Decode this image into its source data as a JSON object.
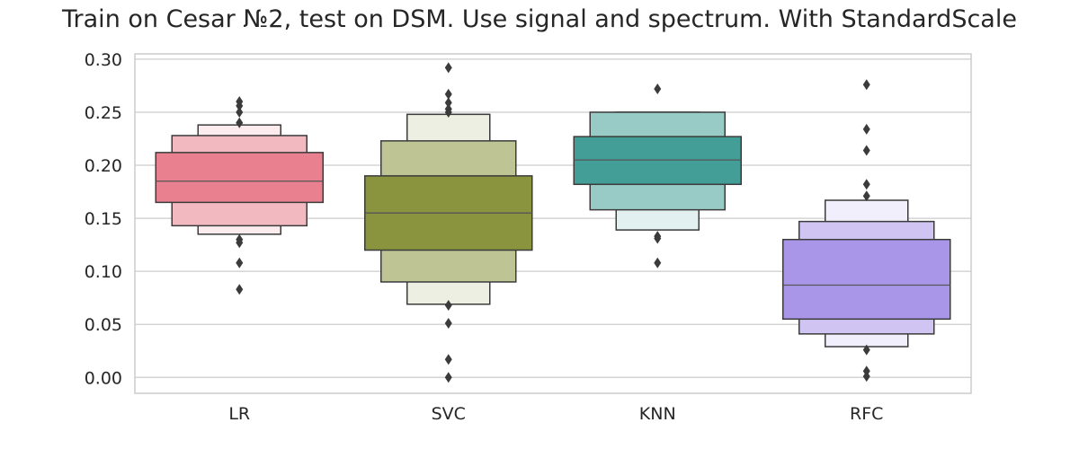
{
  "chart_data": {
    "type": "boxen",
    "title": "Train on Cesar №2, test on DSM. Use signal and spectrum. With StandardScale",
    "xlabel": "",
    "ylabel": "",
    "ylim": [
      -0.015,
      0.305
    ],
    "yticks": [
      "0.00",
      "0.05",
      "0.10",
      "0.15",
      "0.20",
      "0.25",
      "0.30"
    ],
    "grid": "horizontal",
    "categories": [
      "LR",
      "SVC",
      "KNN",
      "RFC"
    ],
    "series": [
      {
        "category": "LR",
        "median": 0.185,
        "levels": [
          [
            0.165,
            0.212
          ],
          [
            0.143,
            0.228
          ],
          [
            0.135,
            0.238
          ]
        ],
        "outliers": [
          0.26,
          0.256,
          0.25,
          0.24,
          0.13,
          0.127,
          0.108,
          0.083
        ],
        "color": "#e8808f"
      },
      {
        "category": "SVC",
        "median": 0.155,
        "levels": [
          [
            0.12,
            0.19
          ],
          [
            0.09,
            0.223
          ],
          [
            0.069,
            0.248
          ]
        ],
        "outliers": [
          0.292,
          0.267,
          0.259,
          0.253,
          0.25,
          0.068,
          0.051,
          0.017,
          0.0
        ],
        "color": "#8a943e"
      },
      {
        "category": "KNN",
        "median": 0.205,
        "levels": [
          [
            0.182,
            0.227
          ],
          [
            0.158,
            0.25
          ],
          [
            0.139,
            0.25
          ]
        ],
        "outliers": [
          0.272,
          0.133,
          0.131,
          0.108
        ],
        "color": "#439e98"
      },
      {
        "category": "RFC",
        "median": 0.087,
        "levels": [
          [
            0.055,
            0.13
          ],
          [
            0.041,
            0.147
          ],
          [
            0.029,
            0.167
          ]
        ],
        "outliers": [
          0.276,
          0.234,
          0.214,
          0.182,
          0.171,
          0.026,
          0.006,
          0.001
        ],
        "color": "#a996e8"
      }
    ]
  }
}
